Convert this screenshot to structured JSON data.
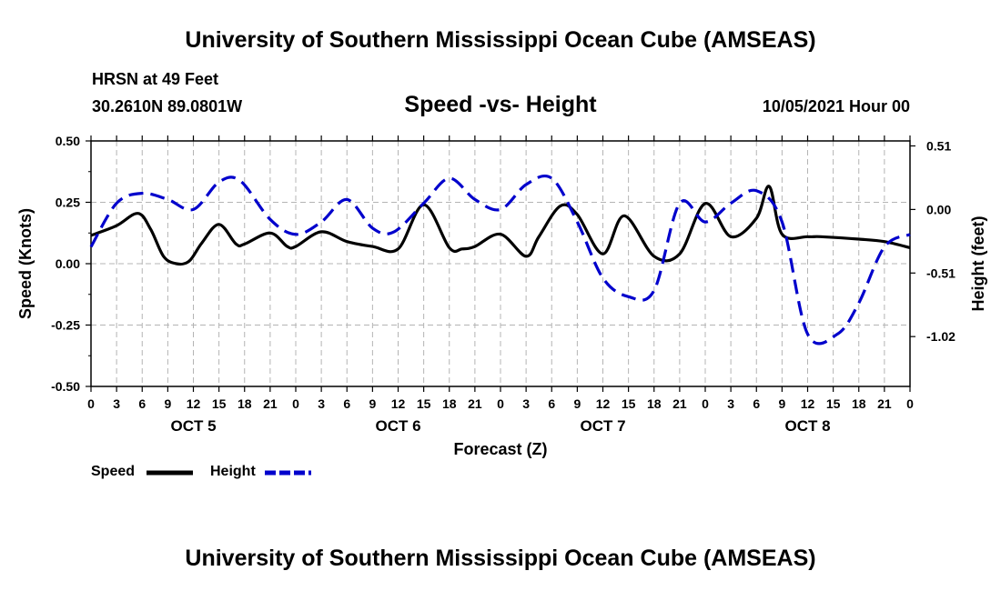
{
  "header": {
    "title": "University of Southern Mississippi Ocean Cube (AMSEAS)",
    "station": "HRSN at 49 Feet",
    "coordinates": "30.2610N  89.0801W",
    "chart_title": "Speed -vs- Height",
    "datetime": "10/05/2021 Hour 00"
  },
  "footer": {
    "title": "University of Southern Mississippi Ocean Cube (AMSEAS)"
  },
  "legend": {
    "speed_label": "Speed",
    "height_label": "Height"
  },
  "chart_data": {
    "type": "line",
    "title": "Speed -vs- Height",
    "xlabel": "Forecast (Z)",
    "ylabel": "Speed (Knots)",
    "y2label": "Height (feet)",
    "x_range_hours": [
      0,
      96
    ],
    "x_tick_step_hours": 3,
    "x_tick_labels": [
      "0",
      "3",
      "6",
      "9",
      "12",
      "15",
      "18",
      "21",
      "0",
      "3",
      "6",
      "9",
      "12",
      "15",
      "18",
      "21",
      "0",
      "3",
      "6",
      "9",
      "12",
      "15",
      "18",
      "21",
      "0",
      "3",
      "6",
      "9",
      "12",
      "15",
      "18",
      "21",
      "0"
    ],
    "day_labels": [
      {
        "label": "OCT 5",
        "hour": 12
      },
      {
        "label": "OCT 6",
        "hour": 36
      },
      {
        "label": "OCT 7",
        "hour": 60
      },
      {
        "label": "OCT 8",
        "hour": 84
      }
    ],
    "ylim": [
      -0.5,
      0.5
    ],
    "y_ticks": [
      "0.50",
      "0.25",
      "0.00",
      "-0.25",
      "-0.50"
    ],
    "y_tick_values": [
      0.5,
      0.25,
      0.0,
      -0.25,
      -0.5
    ],
    "y2lim": [
      -1.42,
      0.55
    ],
    "y2_ticks": [
      "0.51",
      "0.00",
      "-0.51",
      "-1.02"
    ],
    "y2_tick_values": [
      0.51,
      0.0,
      -0.51,
      -1.02
    ],
    "grid": true,
    "series": [
      {
        "name": "Speed",
        "axis": "left",
        "color": "#000000",
        "style": "solid",
        "x": [
          0,
          3,
          5.5,
          7,
          8.5,
          10,
          11.5,
          13,
          15,
          17,
          18,
          21,
          23,
          24,
          27,
          30,
          33,
          36,
          39,
          42,
          43.5,
          45,
          48,
          51,
          52.5,
          55,
          57,
          60,
          62.5,
          66,
          69,
          72,
          75,
          78,
          79.5,
          81,
          84,
          85.5,
          90,
          93,
          96
        ],
        "values": [
          0.115,
          0.155,
          0.205,
          0.14,
          0.03,
          0.0,
          0.01,
          0.085,
          0.16,
          0.08,
          0.08,
          0.125,
          0.07,
          0.07,
          0.13,
          0.09,
          0.07,
          0.06,
          0.24,
          0.065,
          0.06,
          0.07,
          0.12,
          0.03,
          0.11,
          0.235,
          0.2,
          0.04,
          0.195,
          0.03,
          0.04,
          0.245,
          0.11,
          0.185,
          0.315,
          0.12,
          0.11,
          0.11,
          0.1,
          0.09,
          0.065
        ]
      },
      {
        "name": "Height",
        "axis": "right",
        "color": "#0000cc",
        "style": "dashed",
        "x": [
          0,
          3,
          6,
          9,
          12,
          15,
          17.5,
          21,
          24,
          27,
          30,
          33,
          35.5,
          39,
          42,
          45,
          48,
          51,
          54,
          57,
          60,
          63,
          66,
          69,
          72,
          75,
          78,
          81,
          84,
          87.5,
          90,
          93,
          96
        ],
        "values": [
          -0.3,
          0.05,
          0.13,
          0.08,
          0.0,
          0.22,
          0.23,
          -0.08,
          -0.2,
          -0.1,
          0.08,
          -0.15,
          -0.18,
          0.05,
          0.25,
          0.08,
          0.0,
          0.2,
          0.25,
          -0.1,
          -0.55,
          -0.7,
          -0.65,
          0.05,
          -0.1,
          0.05,
          0.15,
          -0.1,
          -1.0,
          -1.0,
          -0.75,
          -0.3,
          -0.2
        ]
      }
    ]
  }
}
